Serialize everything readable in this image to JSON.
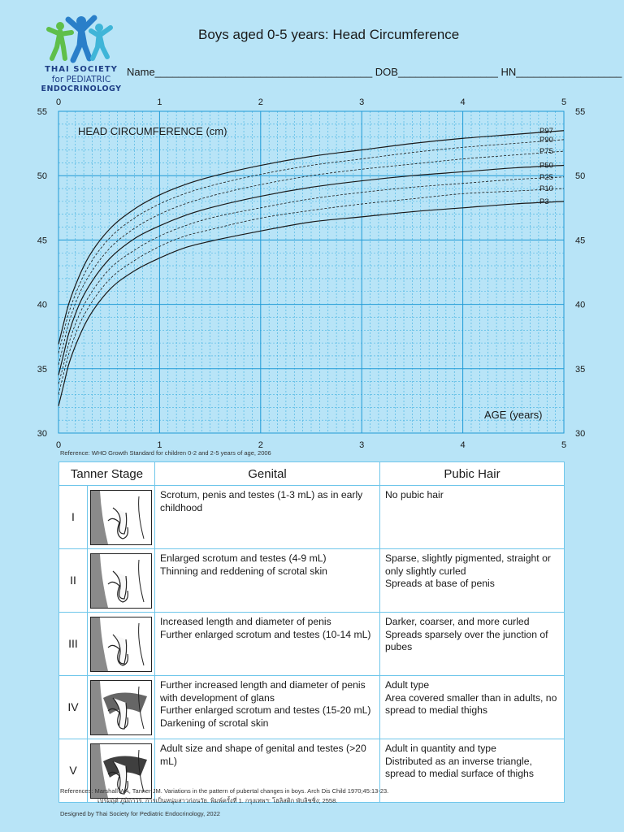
{
  "logo": {
    "line1": "THAI SOCIETY",
    "line2": "for PEDIATRIC",
    "line3": "ENDOCRINOLOGY"
  },
  "header": {
    "title": "Boys aged 0-5 years: Head Circumference",
    "form": "Name_____________________________________ DOB_________________ HN__________________"
  },
  "chart_data": {
    "type": "line",
    "title": "Boys aged 0-5 years: Head Circumference",
    "ylabel": "HEAD CIRCUMFERENCE (cm)",
    "xlabel": "AGE (years)",
    "xlim": [
      0,
      5
    ],
    "ylim": [
      30,
      55
    ],
    "xticks": [
      "0",
      "1",
      "2",
      "3",
      "4",
      "5"
    ],
    "yticks": [
      "30",
      "35",
      "40",
      "45",
      "50",
      "55"
    ],
    "grid": true,
    "x": [
      0,
      0.05,
      0.1,
      0.2,
      0.3,
      0.5,
      0.75,
      1,
      1.25,
      1.5,
      2,
      2.5,
      3,
      3.5,
      4,
      4.5,
      5
    ],
    "series": [
      {
        "name": "P97",
        "style": "solid",
        "values": [
          36.9,
          38.5,
          40.0,
          42.1,
          43.7,
          45.8,
          47.4,
          48.5,
          49.3,
          49.9,
          50.8,
          51.5,
          52.0,
          52.5,
          52.9,
          53.2,
          53.5
        ]
      },
      {
        "name": "P90",
        "style": "dashed",
        "values": [
          36.2,
          37.8,
          39.3,
          41.4,
          43.0,
          45.1,
          46.7,
          47.8,
          48.6,
          49.2,
          50.1,
          50.8,
          51.3,
          51.8,
          52.2,
          52.5,
          52.8
        ]
      },
      {
        "name": "P75",
        "style": "dashed",
        "values": [
          35.3,
          36.9,
          38.5,
          40.7,
          42.2,
          44.3,
          45.9,
          47.0,
          47.8,
          48.4,
          49.3,
          50.0,
          50.5,
          50.9,
          51.3,
          51.6,
          51.9
        ]
      },
      {
        "name": "P50",
        "style": "solid",
        "values": [
          34.5,
          36.1,
          37.7,
          39.9,
          41.4,
          43.5,
          45.1,
          46.1,
          46.9,
          47.5,
          48.4,
          49.1,
          49.6,
          50.0,
          50.3,
          50.6,
          50.8
        ]
      },
      {
        "name": "P25",
        "style": "dashed",
        "values": [
          33.8,
          35.3,
          36.9,
          39.1,
          40.6,
          42.7,
          44.2,
          45.3,
          46.1,
          46.7,
          47.5,
          48.2,
          48.7,
          49.1,
          49.4,
          49.7,
          49.9
        ]
      },
      {
        "name": "P10",
        "style": "dashed",
        "values": [
          33.0,
          34.6,
          36.1,
          38.3,
          39.8,
          41.9,
          43.4,
          44.5,
          45.3,
          45.8,
          46.7,
          47.3,
          47.8,
          48.2,
          48.6,
          48.8,
          49.0
        ]
      },
      {
        "name": "P3",
        "style": "solid",
        "values": [
          32.1,
          33.7,
          35.3,
          37.4,
          39.0,
          41.1,
          42.6,
          43.6,
          44.4,
          44.9,
          45.7,
          46.4,
          46.8,
          47.2,
          47.5,
          47.8,
          48.0
        ]
      }
    ]
  },
  "reference1": "Reference: WHO Growth Standard for children 0-2 and 2-5 years of age, 2006",
  "tanner": {
    "headers": [
      "Tanner Stage",
      "Genital",
      "Pubic Hair"
    ],
    "rows": [
      {
        "stage": "I",
        "genital": "Scrotum, penis and testes (1-3 mL) as in early childhood",
        "pubic": "No pubic hair"
      },
      {
        "stage": "II",
        "genital": "Enlarged scrotum and testes (4-9 mL)\nThinning and reddening of scrotal skin",
        "pubic": "Sparse, slightly pigmented, straight or only slightly curled\nSpreads at base of penis"
      },
      {
        "stage": "III",
        "genital": "Increased length and diameter of penis\nFurther enlarged scrotum and testes (10-14 mL)",
        "pubic": "Darker, coarser, and more curled\nSpreads sparsely over the junction of pubes"
      },
      {
        "stage": "IV",
        "genital": "Further increased length and diameter of penis with development of glans\nFurther enlarged scrotum and testes (15-20 mL)\nDarkening of scrotal skin",
        "pubic": "Adult type\nArea covered smaller than in adults, no spread to medial thighs"
      },
      {
        "stage": "V",
        "genital": "Adult size and shape of genital and testes (>20 mL)",
        "pubic": "Adult in quantity and type\nDistributed as an inverse triangle, spread to medial surface of thighs"
      }
    ]
  },
  "references": {
    "line1": "References:  Marshall WA, Tanner JM. Variations in the pattern of pubertal changes in boys. Arch Dis Child 1970;45:13-23.",
    "line2": "เปรมฤดี ภูมิถาวร. การเป็นหนุ่มสาวก่อนวัย. พิมพ์ครั้งที่ 1. กรุงเทพฯ: โฮลิสติก พับลิชชิ่ง; 2558."
  },
  "designed": "Designed by Thai Society for Pediatric Endocrinology, 2022"
}
